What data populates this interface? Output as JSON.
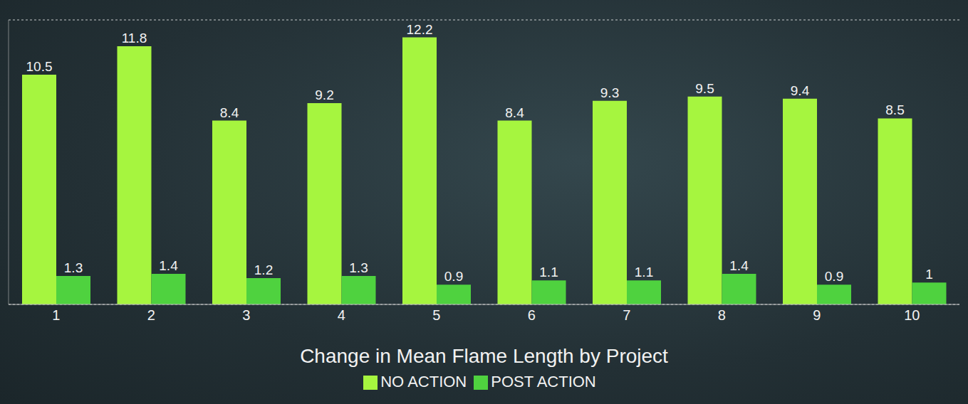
{
  "chart_data": {
    "type": "bar",
    "xlabel": "Change in Mean Flame Length by Project",
    "categories": [
      "1",
      "2",
      "3",
      "4",
      "5",
      "6",
      "7",
      "8",
      "9",
      "10"
    ],
    "series": [
      {
        "name": "NO ACTION",
        "color": "#a6f53f",
        "values": [
          10.5,
          11.8,
          8.4,
          9.2,
          12.2,
          8.4,
          9.3,
          9.5,
          9.4,
          8.5
        ]
      },
      {
        "name": "POST ACTION",
        "color": "#4fd23f",
        "values": [
          1.3,
          1.4,
          1.2,
          1.3,
          0.9,
          1.1,
          1.1,
          1.4,
          0.9,
          1
        ]
      }
    ],
    "ylim": [
      0,
      13
    ],
    "yticks": [
      0,
      2,
      4,
      6,
      8,
      10,
      12
    ],
    "grid": true,
    "data_labels": true,
    "tick_labels": "x",
    "legend": "bottom"
  }
}
